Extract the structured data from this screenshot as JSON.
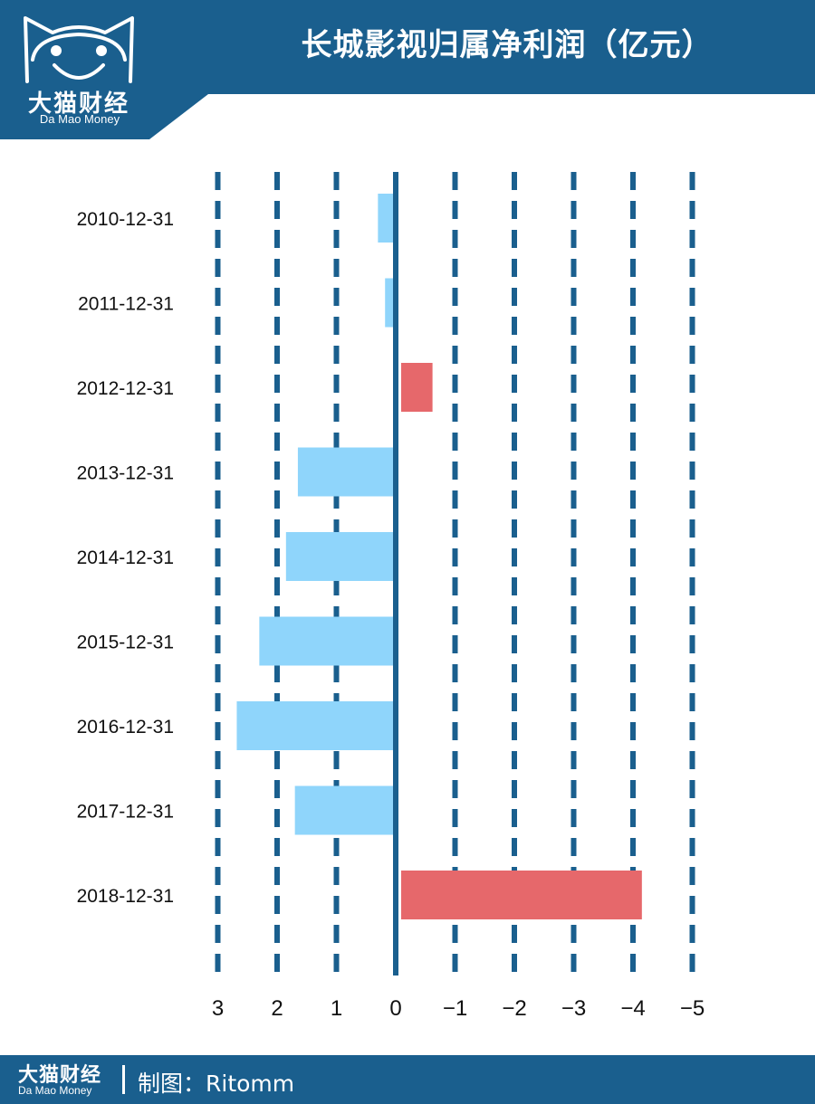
{
  "header": {
    "title": "长城影视归属净利润（亿元）"
  },
  "logo": {
    "name_cn": "大猫财经",
    "name_en": "Da Mao Money"
  },
  "footer": {
    "brand_cn": "大猫财经",
    "brand_en": "Da Mao Money",
    "credit": "制图：Ritomm"
  },
  "colors": {
    "brand": "#1a5f8e",
    "profit_bar": "#8fd5fb",
    "loss_bar": "#e6686b",
    "grid": "#1a5f8e"
  },
  "chart_data": {
    "type": "bar",
    "orientation": "horizontal",
    "x_axis_reversed": true,
    "title": "长城影视归属净利润（亿元）",
    "categories": [
      "2010-12-31",
      "2011-12-31",
      "2012-12-31",
      "2013-12-31",
      "2014-12-31",
      "2015-12-31",
      "2016-12-31",
      "2017-12-31",
      "2018-12-31"
    ],
    "values": [
      0.3,
      0.18,
      -0.62,
      1.65,
      1.85,
      2.3,
      2.68,
      1.7,
      -4.15
    ],
    "tick_values": [
      3,
      2,
      1,
      0,
      -1,
      -2,
      -3,
      -4,
      -5
    ],
    "tick_labels": [
      "3",
      "2",
      "1",
      "0",
      "−1",
      "−2",
      "−3",
      "−4",
      "−5"
    ],
    "xlim": [
      3,
      -5
    ],
    "grid": true
  }
}
